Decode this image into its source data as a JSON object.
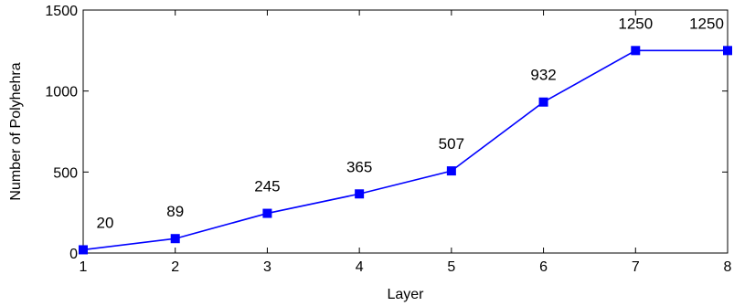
{
  "chart_data": {
    "type": "line",
    "x": [
      1,
      2,
      3,
      4,
      5,
      6,
      7,
      8
    ],
    "series": [
      {
        "values": [
          20,
          89,
          245,
          365,
          507,
          932,
          1250,
          1250
        ]
      }
    ],
    "data_labels": [
      "20",
      "89",
      "245",
      "365",
      "507",
      "932",
      "1250",
      "1250"
    ],
    "xlabel": "Layer",
    "ylabel": "Number of Polyhehra",
    "xlim": [
      1,
      8
    ],
    "ylim": [
      0,
      1500
    ],
    "x_ticks": [
      1,
      2,
      3,
      4,
      5,
      6,
      7,
      8
    ],
    "y_ticks": [
      0,
      500,
      1000,
      1500
    ],
    "grid": false,
    "marker": "square",
    "color": "#0000ff"
  }
}
